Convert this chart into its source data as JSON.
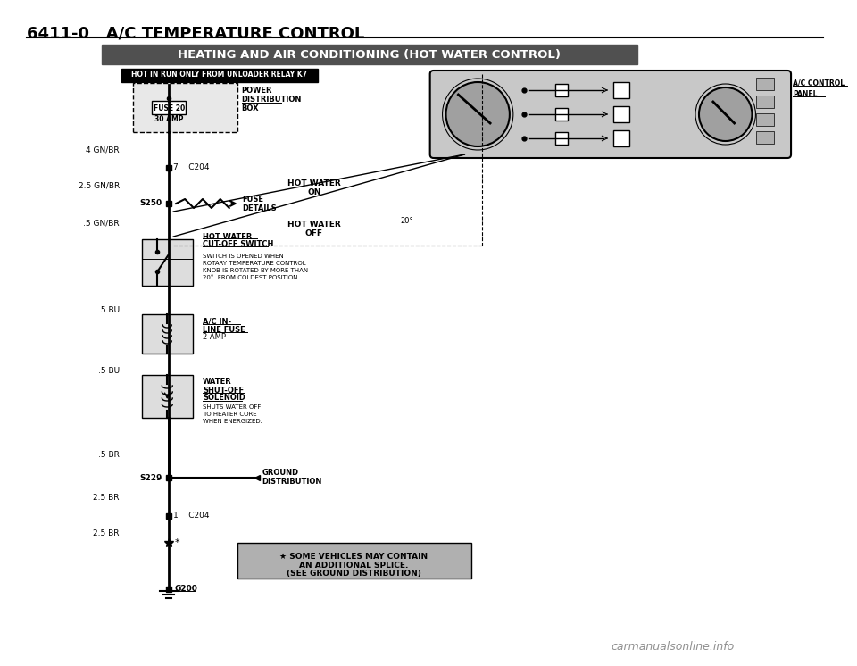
{
  "page_title": "6411-0   A/C TEMPERATURE CONTROL",
  "diagram_title": "HEATING AND AIR CONDITIONING (HOT WATER CONTROL)",
  "hot_label": "HOT IN RUN ONLY FROM UNLOADER RELAY K7",
  "bg_color": "#ffffff",
  "text_color": "#000000",
  "wire_color": "#000000",
  "fuse_box_label1": "FUSE 20",
  "fuse_box_label2": "30 AMP",
  "power_label1": "POWER",
  "power_label2": "DISTRIBUTION",
  "power_label3": "BOX",
  "wire1_label": "4 GN/BR",
  "connector_label": "7    C204",
  "wire2_label": "2.5 GN/BR",
  "splice_label": "S250",
  "fuse_detail_label1": "FUSE",
  "fuse_detail_label2": "DETAILS",
  "wire3_label": ".5 GN/BR",
  "switch_label1": "HOT WATER",
  "switch_label2": "CUT-OFF SWITCH",
  "switch_note1": "SWITCH IS OPENED WHEN",
  "switch_note2": "ROTARY TEMPERATURE CONTROL",
  "switch_note3": "KNOB IS ROTATED BY MORE THAN",
  "switch_note4": "20°  FROM COLDEST POSITION.",
  "wire4_label": ".5 BU",
  "fuse2_label1": "A/C IN-",
  "fuse2_label2": "LINE FUSE",
  "fuse2_label3": "2 AMP",
  "wire5_label": ".5 BU",
  "solenoid_label1": "WATER",
  "solenoid_label2": "SHUT-OFF",
  "solenoid_label3": "SOLENOID",
  "solenoid_note1": "SHUTS WATER OFF",
  "solenoid_note2": "TO HEATER CORE",
  "solenoid_note3": "WHEN ENERGIZED.",
  "wire6_label": ".5 BR",
  "ground_splice": "S229",
  "ground_label1": "GROUND",
  "ground_label2": "DISTRIBUTION",
  "wire7_label": "2.5 BR",
  "connector2_label": "1    C204",
  "wire8_label": "2.5 BR",
  "ground_label": "G200",
  "star_note1": "★ SOME VEHICLES MAY CONTAIN",
  "star_note2": "AN ADDITIONAL SPLICE.",
  "star_note3": "(SEE GROUND DISTRIBUTION)",
  "hot_water_on_label1": "HOT WATER",
  "hot_water_on_label2": "ON",
  "hot_water_off_label1": "HOT WATER",
  "hot_water_off_label2": "OFF",
  "angle_label": "20°",
  "ac_panel_label1": "A/C CONTROL",
  "ac_panel_label2": "PANEL",
  "watermark": "carmanualsonline.info"
}
